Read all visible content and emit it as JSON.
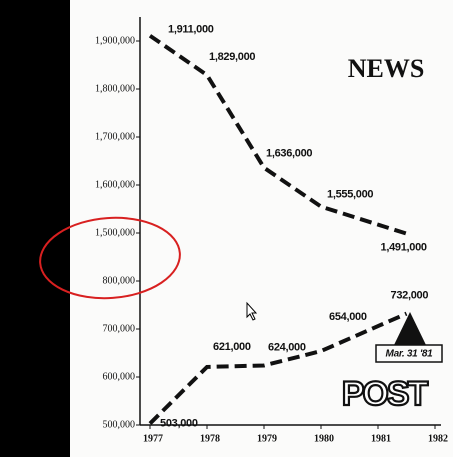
{
  "chart_data": {
    "type": "line",
    "series": [
      {
        "name": "NEWS",
        "color": "#111111",
        "x": [
          1977,
          1978,
          1979,
          1980,
          1981.5
        ],
        "values": [
          1911000,
          1829000,
          1636000,
          1555000,
          1491000
        ],
        "value_labels": [
          "1,911,000",
          "1,829,000",
          "1,636,000",
          "1,555,000",
          "1,491,000"
        ]
      },
      {
        "name": "POST",
        "color": "#111111",
        "x": [
          1977,
          1978,
          1979,
          1980,
          1981.5
        ],
        "values": [
          503000,
          621000,
          624000,
          654000,
          732000
        ],
        "value_labels": [
          "503,000",
          "621,000",
          "624,000",
          "654,000",
          "732,000"
        ]
      }
    ],
    "annotation": "Mar. 31 '81",
    "xlim": [
      1977,
      1982
    ],
    "xticks": [
      1977,
      1978,
      1979,
      1980,
      1981,
      1982
    ],
    "ylim": [
      500000,
      1950000
    ],
    "yticks": [
      {
        "value": 500000,
        "label": "500,000"
      },
      {
        "value": 600000,
        "label": "600,000"
      },
      {
        "value": 700000,
        "label": "700,000"
      },
      {
        "value": 800000,
        "label": "800,000"
      },
      {
        "value": 1500000,
        "label": "1,500,000"
      },
      {
        "value": 1600000,
        "label": "1,600,000"
      },
      {
        "value": 1700000,
        "label": "1,700,000"
      },
      {
        "value": 1800000,
        "label": "1,800,000"
      },
      {
        "value": 1900000,
        "label": "1,900,000"
      }
    ]
  }
}
